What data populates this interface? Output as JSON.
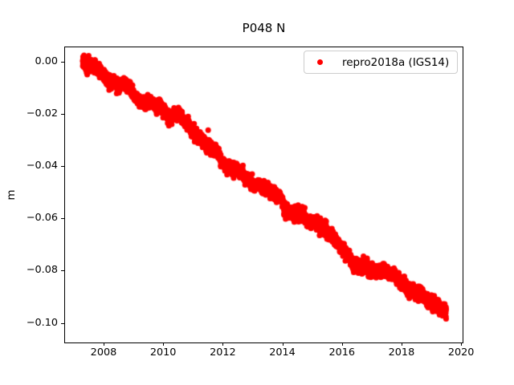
{
  "figure": {
    "title": "P048 N",
    "background_color": "#ffffff"
  },
  "chart_data": {
    "type": "scatter",
    "title": "P048 N",
    "xlabel": "",
    "ylabel": "m",
    "xlim": [
      2006.68,
      2020.05
    ],
    "ylim": [
      -0.1075,
      0.0058
    ],
    "x_ticks": [
      "2008",
      "2010",
      "2012",
      "2014",
      "2016",
      "2018",
      "2020"
    ],
    "x_tick_values": [
      2008,
      2010,
      2012,
      2014,
      2016,
      2018,
      2020
    ],
    "y_ticks": [
      "0.00",
      "−0.02",
      "−0.04",
      "−0.06",
      "−0.08",
      "−0.10"
    ],
    "y_tick_values": [
      0,
      -0.02,
      -0.04,
      -0.06,
      -0.08,
      -0.1
    ],
    "grid": false,
    "legend_position": "upper right",
    "series": [
      {
        "name": "repro2018a (IGS14)",
        "color": "#ff0000",
        "marker": "point",
        "marker_diameter_px": 7,
        "cadence": "daily",
        "n_points_approx": 4400,
        "x_start": 2007.3,
        "x_end": 2019.5,
        "trend_y_start_m": 0.0,
        "trend_y_end_m": -0.1,
        "trend_slope_m_per_yr": -0.0082,
        "noise_std_m": 0.0012,
        "sampled_points": {
          "x": [
            2007.3,
            2008,
            2009,
            2010,
            2011,
            2012,
            2013,
            2014,
            2015,
            2016,
            2017,
            2018,
            2019,
            2019.5
          ],
          "y": [
            0.0,
            -0.006,
            -0.014,
            -0.022,
            -0.03,
            -0.039,
            -0.047,
            -0.055,
            -0.063,
            -0.071,
            -0.08,
            -0.088,
            -0.096,
            -0.1
          ]
        }
      }
    ]
  }
}
